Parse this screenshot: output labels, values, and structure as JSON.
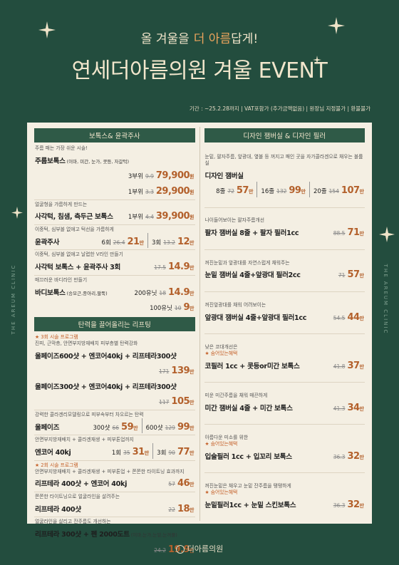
{
  "header": {
    "headline": [
      "올 겨울을",
      "더 아름",
      "답게!"
    ],
    "title": "연세더아름의원 겨울 EVENT",
    "notice": "기간 : ~25.2.28까지 | VAT포함가 (추가금액없음) | 원장님 지정불가 | 환불불가"
  },
  "side_text": "THE AREUM CLINIC",
  "columns": [
    {
      "sections": [
        {
          "heading": "보톡스& 윤곽주사",
          "items": [
            {
              "subtitle": "주름 패는 가장 쉬운 시술!",
              "rows": [
                {
                  "name": "주름보톡스",
                  "note": "(이마, 미간, 눈가, 콧등, 자갈턱)",
                  "prices": [
                    {
                      "label": "3부위",
                      "original": "9.9",
                      "price": "79,900",
                      "unit": "원"
                    }
                  ]
                },
                {
                  "prices": [
                    {
                      "label": "1부위",
                      "original": "3.3",
                      "price": "29,900",
                      "unit": "원"
                    }
                  ]
                }
              ]
            },
            {
              "subtitle": "얼굴형을 갸름하게 만드는",
              "rows": [
                {
                  "name": "사각턱, 침샘, 측두근 보톡스",
                  "prices": [
                    {
                      "label": "1부위",
                      "original": "4.4",
                      "price": "39,900",
                      "unit": "원"
                    }
                  ]
                }
              ]
            },
            {
              "subtitle": "이중턱, 심부볼 없애고 턱선을 갸름하게",
              "rows": [
                {
                  "name": "윤곽주사",
                  "prices": [
                    {
                      "label": "6회",
                      "original": "26.4",
                      "price": "21",
                      "unit": "만"
                    },
                    {
                      "label": "3회",
                      "original": "13.2",
                      "price": "12",
                      "unit": "만"
                    }
                  ]
                }
              ]
            },
            {
              "subtitle": "이중턱, 심부볼 없애고 날렵한 V라인 만들기",
              "rows": [
                {
                  "name": "사각턱 보톡스 + 윤곽주사 3회",
                  "prices": [
                    {
                      "original": "17.5",
                      "price": "14.9",
                      "unit": "만"
                    }
                  ]
                }
              ]
            },
            {
              "subtitle": "매끄러운 바디라인 만들기",
              "rows": [
                {
                  "name": "바디보톡스",
                  "note": "(승모근,종아리,팔뚝)",
                  "prices": [
                    {
                      "label": "200유닛",
                      "original": "18",
                      "price": "14.9",
                      "unit": "만"
                    }
                  ]
                },
                {
                  "prices": [
                    {
                      "label": "100유닛",
                      "original": "10",
                      "price": "9",
                      "unit": "만"
                    }
                  ]
                }
              ]
            }
          ]
        },
        {
          "heading": "탄력을 끌어올리는 리프팅",
          "items": [
            {
              "badge": "★ 3회 시술 프로그램",
              "subtitle": "진피, 근막층, 안면부지방재배치 피부층별 탄력강화",
              "rows": [
                {
                  "name": "울페이즈600샷 + 엔코어40kj + 리프테라300샷",
                  "prices": [
                    {
                      "original": "171",
                      "price": "139",
                      "unit": "만"
                    }
                  ]
                },
                {
                  "name": "울페이즈300샷 + 엔코어40kj + 리프테라300샷",
                  "prices": [
                    {
                      "original": "117",
                      "price": "105",
                      "unit": "만"
                    }
                  ]
                }
              ]
            },
            {
              "subtitle": "강력한 콜라겐리모델링으로 피부속부터 차오르는 탄력",
              "rows": [
                {
                  "name": "울페이즈",
                  "prices": [
                    {
                      "label": "300샷",
                      "original": "66",
                      "price": "59",
                      "unit": "만"
                    },
                    {
                      "label": "600샷",
                      "original": "129",
                      "price": "99",
                      "unit": "만"
                    }
                  ]
                }
              ]
            },
            {
              "subtitle": "안면부지방재배치 + 콜라겐재생 + 피부톤업까지",
              "rows": [
                {
                  "name": "엔코어 40kj",
                  "prices": [
                    {
                      "label": "1회",
                      "original": "35",
                      "price": "31",
                      "unit": "만"
                    },
                    {
                      "label": "3회",
                      "original": "90",
                      "price": "77",
                      "unit": "만"
                    }
                  ]
                }
              ]
            },
            {
              "badge": "★ 2회 시술 프로그램",
              "subtitle": "안면부지방재배치 + 콜라겐재생 + 피부톤업 + 쫀쫀한 타이트닝 효과까지",
              "rows": [
                {
                  "name": "리프테라 400샷 + 엔코어 40kj",
                  "prices": [
                    {
                      "original": "57",
                      "price": "46",
                      "unit": "만"
                    }
                  ]
                }
              ]
            },
            {
              "subtitle": "쫀쫀한 타이트닝으로 얼굴라인을 살려주는",
              "rows": [
                {
                  "name": "리프테라 400샷",
                  "prices": [
                    {
                      "original": "22",
                      "price": "18",
                      "unit": "만"
                    }
                  ]
                }
              ]
            },
            {
              "subtitle": "얼굴라인을 살리고 잔주름도 개선하는",
              "rows": [
                {
                  "name": "리프테라 300샷 + 펜 2000도트",
                  "note": "(이마,눈가,눈밑,눈꺼풀)",
                  "prices": [
                    {
                      "original": "24.2",
                      "price": "19.9",
                      "unit": "만"
                    }
                  ]
                }
              ]
            }
          ]
        }
      ]
    },
    {
      "sections": [
        {
          "heading": "디자인 잼버실 & 디자인 필러",
          "items": [
            {
              "subtitle": "눈밑, 팔자주름, 앞광대, 옆볼 등 꺼지고 패인 곳을 자가콜라겐으로 채우는 볼륨실",
              "rows": [
                {
                  "name": "디자인 잼버실",
                  "prices": [
                    {
                      "label": "8줄",
                      "original": "72",
                      "price": "57",
                      "unit": "만"
                    },
                    {
                      "label": "16줄",
                      "original": "132",
                      "price": "99",
                      "unit": "만"
                    },
                    {
                      "label": "20줄",
                      "original": "154",
                      "price": "107",
                      "unit": "만"
                    }
                  ]
                }
              ]
            },
            {
              "subtitle": "나이들어보이는 팔자주름개선",
              "rows": [
                {
                  "name": "팔자 잼버실 8줄 + 팔자 필러1cc",
                  "prices": [
                    {
                      "original": "88.5",
                      "price": "71",
                      "unit": "만"
                    }
                  ]
                }
              ]
            },
            {
              "subtitle": "꺼진눈밑과 앞광대를 자연스럽게 채워주는",
              "rows": [
                {
                  "name": "눈밑 잼버실 4줄+앞광대 필러2cc",
                  "prices": [
                    {
                      "original": "71",
                      "price": "57",
                      "unit": "만"
                    }
                  ]
                }
              ]
            },
            {
              "subtitle": "꺼진앞광대를 채워 어려보이는",
              "rows": [
                {
                  "name": "앞광대 잼버실 4줄+앞광대 필러1cc",
                  "prices": [
                    {
                      "original": "54.5",
                      "price": "44",
                      "unit": "만"
                    }
                  ]
                }
              ]
            },
            {
              "subtitle": "낮은 코대개선은",
              "badge": "★ 숨어있는혜택",
              "rows": [
                {
                  "name": "코필러 1cc + 콧등or미간 보톡스",
                  "prices": [
                    {
                      "original": "41.8",
                      "price": "37",
                      "unit": "만"
                    }
                  ]
                }
              ]
            },
            {
              "subtitle": "미운 미간주름을 채워 매끈하게",
              "rows": [
                {
                  "name": "미간 잼버실 4줄 + 미간 보톡스",
                  "prices": [
                    {
                      "original": "41.3",
                      "price": "34",
                      "unit": "만"
                    }
                  ]
                }
              ]
            },
            {
              "subtitle": "아름다운 미소를 위한",
              "badge": "★ 숨어있는혜택",
              "rows": [
                {
                  "name": "입술필러 1cc + 입꼬리 보톡스",
                  "prices": [
                    {
                      "original": "36.3",
                      "price": "32",
                      "unit": "만"
                    }
                  ]
                }
              ]
            },
            {
              "subtitle": "꺼진눈밑은 채우고 눈밑 잔주름을 탱탱하게",
              "badge": "★ 숨어있는혜택",
              "rows": [
                {
                  "name": "눈밑필러1cc + 눈밑 스킨보톡스",
                  "prices": [
                    {
                      "original": "36.3",
                      "price": "32",
                      "unit": "만"
                    }
                  ]
                }
              ]
            }
          ]
        }
      ]
    }
  ],
  "footer": {
    "logo": "더아름의원"
  }
}
